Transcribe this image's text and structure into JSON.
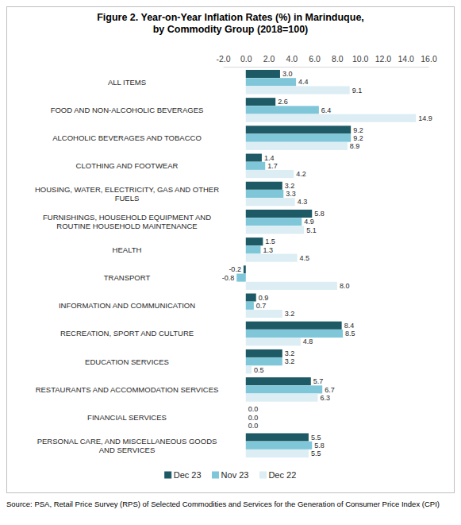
{
  "chart_data": {
    "type": "bar",
    "orientation": "horizontal",
    "title": "Figure 2. Year-on-Year Inflation Rates (%) in Marinduque, by Commodity Group (2018=100)",
    "categories": [
      "ALL ITEMS",
      "FOOD AND NON-ALCOHOLIC BEVERAGES",
      "ALCOHOLIC BEVERAGES AND TOBACCO",
      "CLOTHING AND FOOTWEAR",
      "HOUSING, WATER, ELECTRICITY, GAS AND OTHER FUELS",
      "FURNISHINGS, HOUSEHOLD EQUIPMENT AND ROUTINE HOUSEHOLD MAINTENANCE",
      "HEALTH",
      "TRANSPORT",
      "INFORMATION AND COMMUNICATION",
      "RECREATION, SPORT AND CULTURE",
      "EDUCATION SERVICES",
      "RESTAURANTS AND ACCOMMODATION SERVICES",
      "FINANCIAL SERVICES",
      "PERSONAL CARE, AND MISCELLANEOUS GOODS AND SERVICES"
    ],
    "series": [
      {
        "name": "Dec 23",
        "color": "#1e5a66",
        "values": [
          3.0,
          2.6,
          9.2,
          1.4,
          3.2,
          5.8,
          1.5,
          -0.2,
          0.9,
          8.4,
          3.2,
          5.7,
          0.0,
          5.5
        ],
        "value_labels": [
          "3.0",
          "2.6",
          "9.2",
          "1.4",
          "3.2",
          "5.8",
          "1.5",
          "-0.2",
          "0.9",
          "8.4",
          "3.2",
          "5.7",
          "0.0",
          "5.5"
        ]
      },
      {
        "name": "Nov 23",
        "color": "#7fc6d8",
        "values": [
          4.4,
          6.4,
          9.2,
          1.7,
          3.3,
          4.9,
          1.3,
          -0.8,
          0.7,
          8.5,
          3.2,
          6.7,
          0.0,
          5.8
        ],
        "value_labels": [
          "4.4",
          "6.4",
          "9.2",
          "1.7",
          "3.3",
          "4.9",
          "1.3",
          "-0.8",
          "0.7",
          "8.5",
          "3.2",
          "6.7",
          "0.0",
          "5.8"
        ]
      },
      {
        "name": "Dec 22",
        "color": "#dcedf4",
        "values": [
          9.1,
          14.9,
          8.9,
          4.2,
          4.3,
          5.1,
          4.5,
          8.0,
          3.2,
          4.8,
          0.5,
          6.3,
          0.0,
          5.5
        ],
        "value_labels": [
          "9.1",
          "14.9",
          "8.9",
          "4.2",
          "4.3",
          "5.1",
          "4.5",
          "8.0",
          "3.2",
          "4.8",
          "0.5",
          "6.3",
          "0.0",
          "5.5"
        ]
      }
    ],
    "xlim": [
      -2,
      16
    ],
    "xticks": [
      {
        "value": -2,
        "label": "-2.0"
      },
      {
        "value": 0,
        "label": "0.0"
      },
      {
        "value": 2,
        "label": "2.0"
      },
      {
        "value": 4,
        "label": "4.0"
      },
      {
        "value": 6,
        "label": "6.0"
      },
      {
        "value": 8,
        "label": "8.0"
      },
      {
        "value": 10,
        "label": "10.0"
      },
      {
        "value": 12,
        "label": "12.0"
      },
      {
        "value": 14,
        "label": "14.0"
      },
      {
        "value": 16,
        "label": "16.0"
      }
    ],
    "data_labels": true,
    "grid": false,
    "legend": "bottom",
    "annotations": [
      "Source: PSA, Retail Price Survey (RPS) of Selected Commodities and Services for the Generation of Consumer Price Index (CPI)"
    ]
  }
}
